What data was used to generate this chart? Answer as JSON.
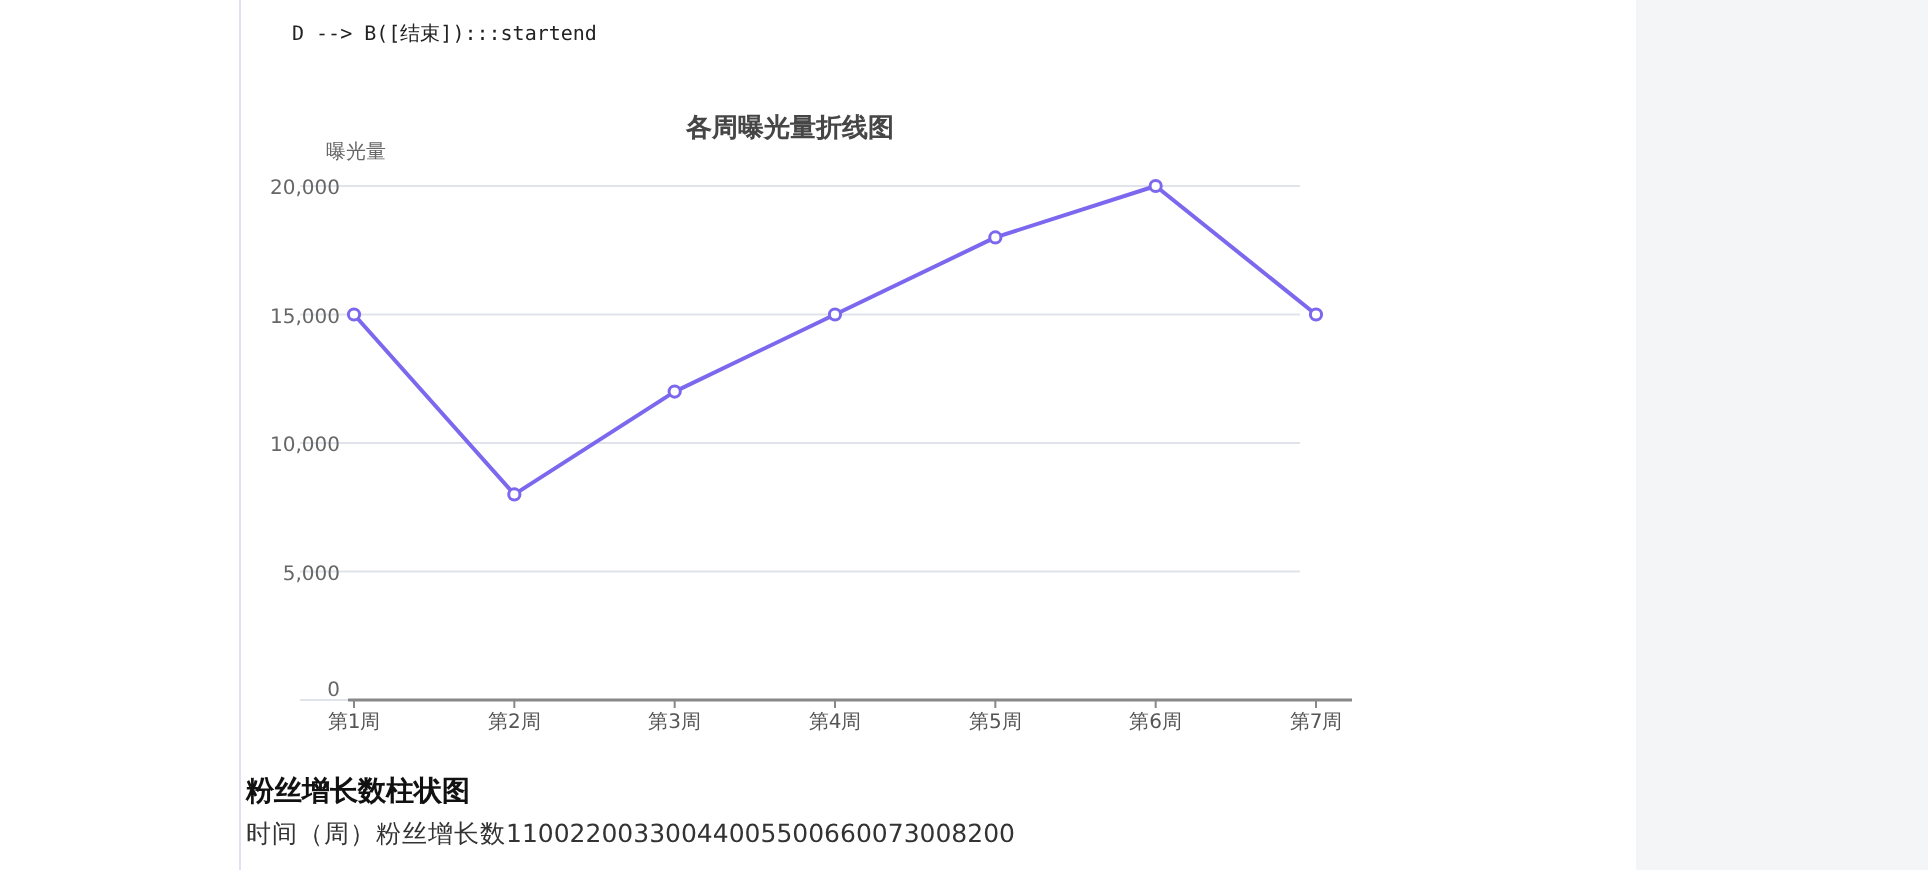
{
  "chart_data": {
    "type": "line",
    "title": "各周曝光量折线图",
    "ylabel": "曝光量",
    "categories": [
      "第1周",
      "第2周",
      "第3周",
      "第4周",
      "第5周",
      "第6周",
      "第7周"
    ],
    "series": [
      {
        "color": "#7b68ee",
        "values": [
          15000,
          8000,
          12000,
          15000,
          18000,
          20000,
          15000
        ]
      }
    ],
    "ylim": [
      0,
      20000
    ],
    "yticks": [
      {
        "value": 0,
        "label": "0"
      },
      {
        "value": 5000,
        "label": "5,000"
      },
      {
        "value": 10000,
        "label": "10,000"
      },
      {
        "value": 15000,
        "label": "15,000"
      },
      {
        "value": 20000,
        "label": "20,000"
      }
    ],
    "grid": "y",
    "marker": "circle",
    "line_style": "solid",
    "annotations": [
      "D --> B([结束]):::startend",
      "粉丝增长数柱状图",
      "时间（周）粉丝增长数11002200330044005500660073008200"
    ]
  }
}
